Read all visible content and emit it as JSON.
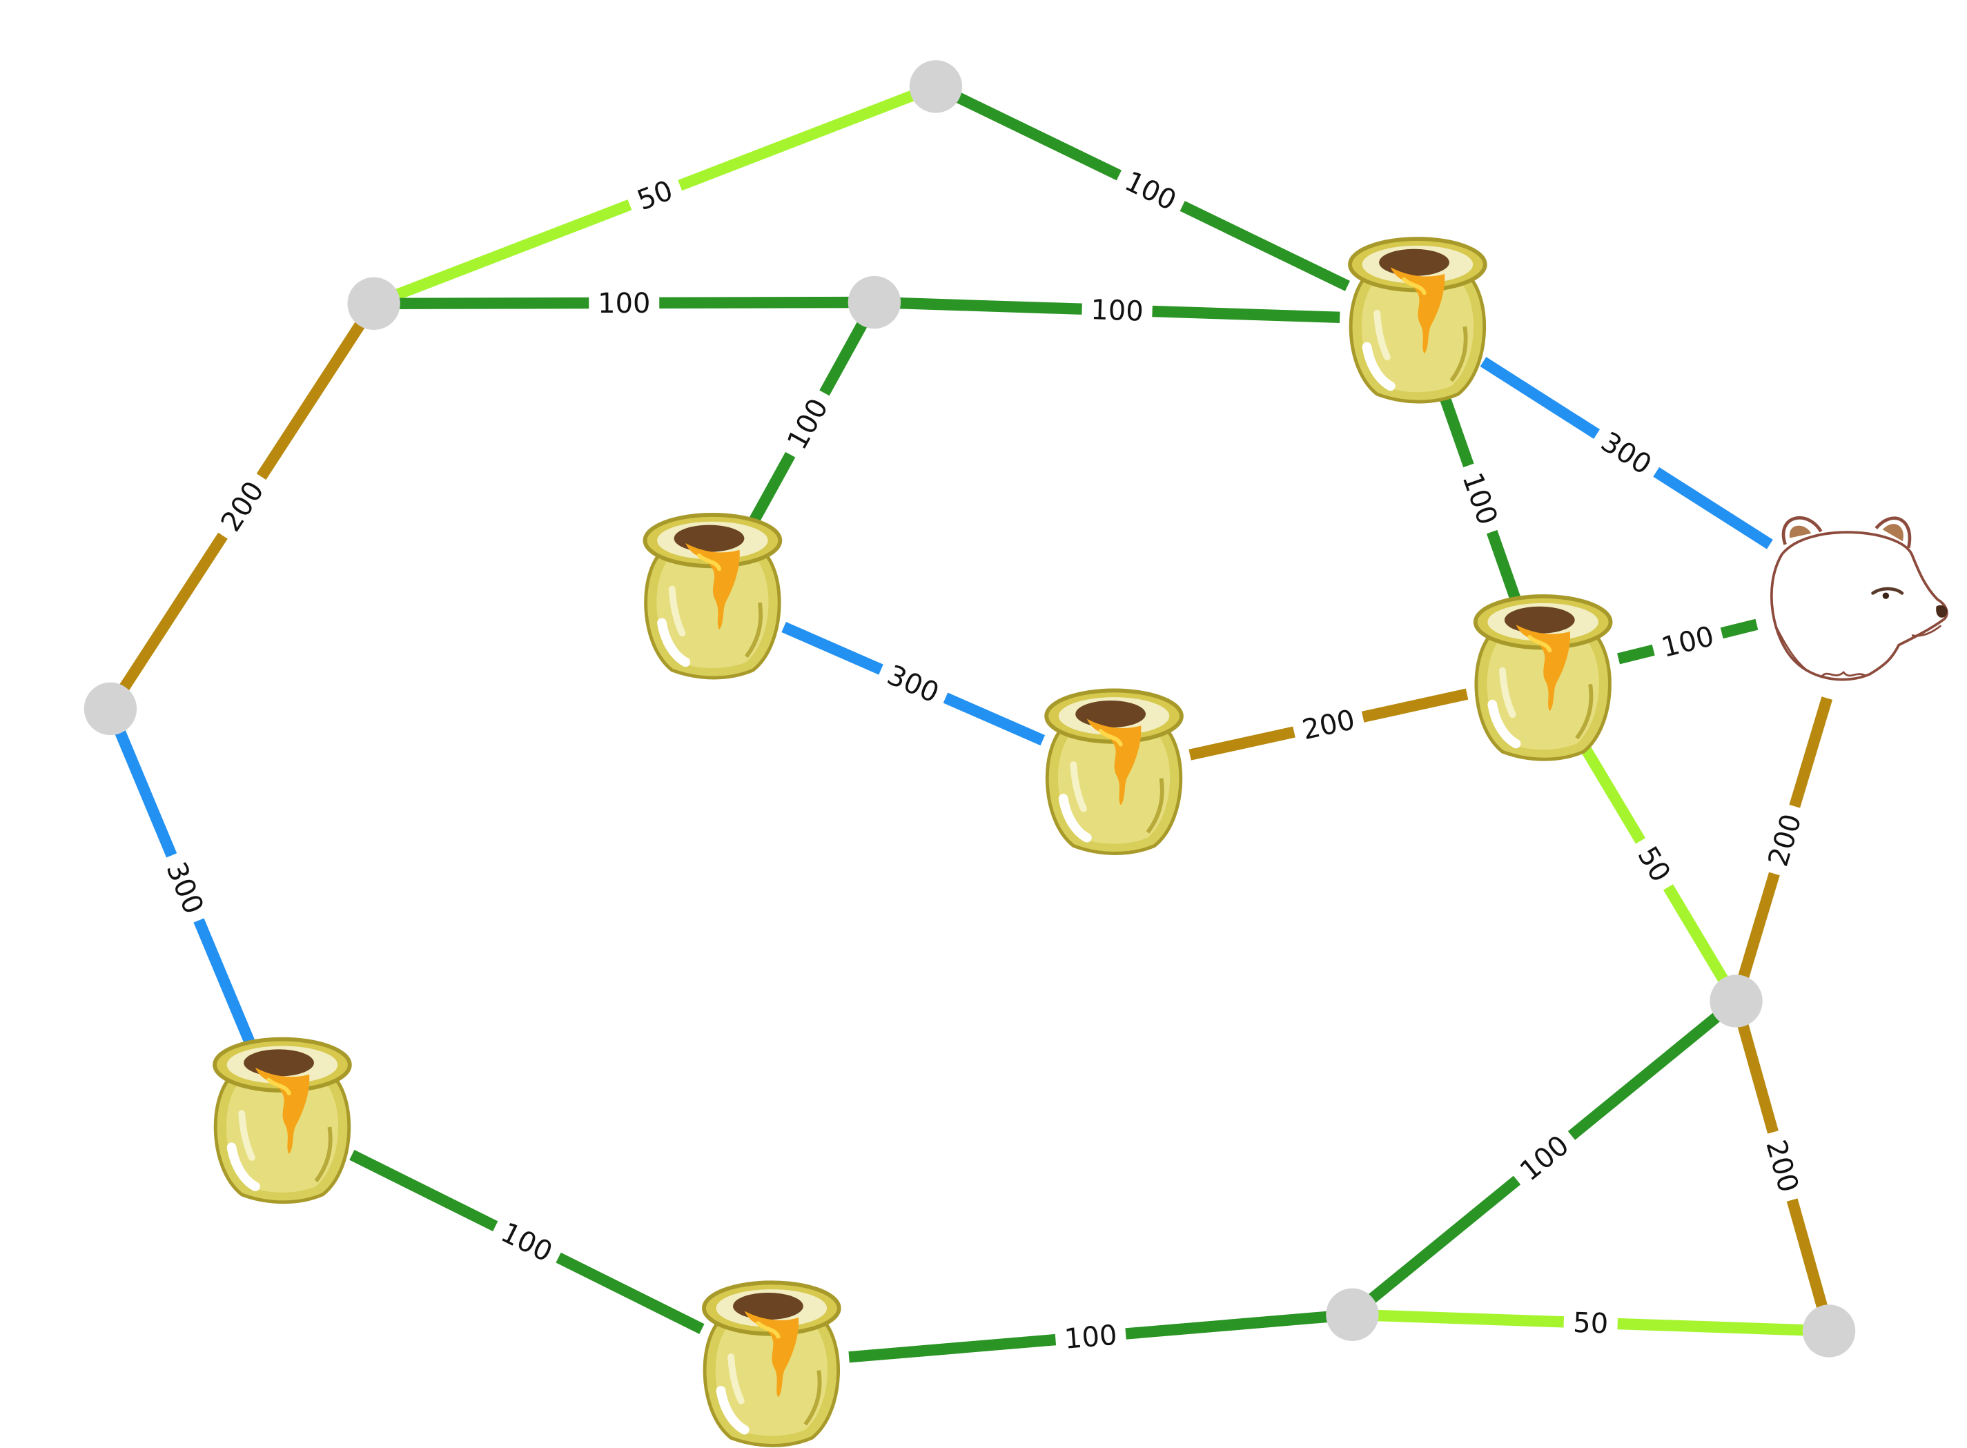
{
  "colors": {
    "weight_50": "#A6F42E",
    "weight_100": "#2A9424",
    "weight_200": "#B8890E",
    "weight_300": "#2391F2",
    "junction": "#D3D3D3",
    "label_bg": "#FFFFFF"
  },
  "icons": {
    "honey_pot": "honey-pot-icon",
    "bear": "bear-head-icon",
    "junction": "junction-node"
  },
  "nodes": [
    {
      "id": "j_top",
      "kind": "junction"
    },
    {
      "id": "j_upper_left",
      "kind": "junction"
    },
    {
      "id": "j_upper_mid",
      "kind": "junction"
    },
    {
      "id": "j_left",
      "kind": "junction"
    },
    {
      "id": "j_lower_right",
      "kind": "junction"
    },
    {
      "id": "j_bottom_mid",
      "kind": "junction"
    },
    {
      "id": "j_bottom_right",
      "kind": "junction"
    },
    {
      "id": "pot_top_right",
      "kind": "honey-pot"
    },
    {
      "id": "pot_inner_left",
      "kind": "honey-pot"
    },
    {
      "id": "pot_center",
      "kind": "honey-pot"
    },
    {
      "id": "pot_right",
      "kind": "honey-pot"
    },
    {
      "id": "pot_lower_left",
      "kind": "honey-pot"
    },
    {
      "id": "pot_bottom",
      "kind": "honey-pot"
    },
    {
      "id": "bear",
      "kind": "bear"
    }
  ],
  "edges": [
    {
      "from": "j_upper_left",
      "to": "j_top",
      "weight": 50,
      "label": "50"
    },
    {
      "from": "j_top",
      "to": "pot_top_right",
      "weight": 100,
      "label": "100"
    },
    {
      "from": "j_upper_left",
      "to": "j_upper_mid",
      "weight": 100,
      "label": "100"
    },
    {
      "from": "j_upper_mid",
      "to": "pot_top_right",
      "weight": 100,
      "label": "100"
    },
    {
      "from": "j_upper_mid",
      "to": "pot_inner_left",
      "weight": 100,
      "label": "100"
    },
    {
      "from": "j_upper_left",
      "to": "j_left",
      "weight": 200,
      "label": "200"
    },
    {
      "from": "j_left",
      "to": "pot_lower_left",
      "weight": 300,
      "label": "300"
    },
    {
      "from": "pot_inner_left",
      "to": "pot_center",
      "weight": 300,
      "label": "300"
    },
    {
      "from": "pot_center",
      "to": "pot_right",
      "weight": 200,
      "label": "200"
    },
    {
      "from": "pot_top_right",
      "to": "bear",
      "weight": 300,
      "label": "300"
    },
    {
      "from": "pot_top_right",
      "to": "pot_right",
      "weight": 100,
      "label": "100"
    },
    {
      "from": "pot_right",
      "to": "bear",
      "weight": 100,
      "label": "100"
    },
    {
      "from": "pot_right",
      "to": "j_lower_right",
      "weight": 50,
      "label": "50"
    },
    {
      "from": "bear",
      "to": "j_lower_right",
      "weight": 200,
      "label": "200"
    },
    {
      "from": "j_lower_right",
      "to": "j_bottom_mid",
      "weight": 100,
      "label": "100"
    },
    {
      "from": "j_lower_right",
      "to": "j_bottom_right",
      "weight": 200,
      "label": "200"
    },
    {
      "from": "j_bottom_mid",
      "to": "j_bottom_right",
      "weight": 50,
      "label": "50"
    },
    {
      "from": "pot_lower_left",
      "to": "pot_bottom",
      "weight": 100,
      "label": "100"
    },
    {
      "from": "pot_bottom",
      "to": "j_bottom_mid",
      "weight": 100,
      "label": "100"
    }
  ]
}
